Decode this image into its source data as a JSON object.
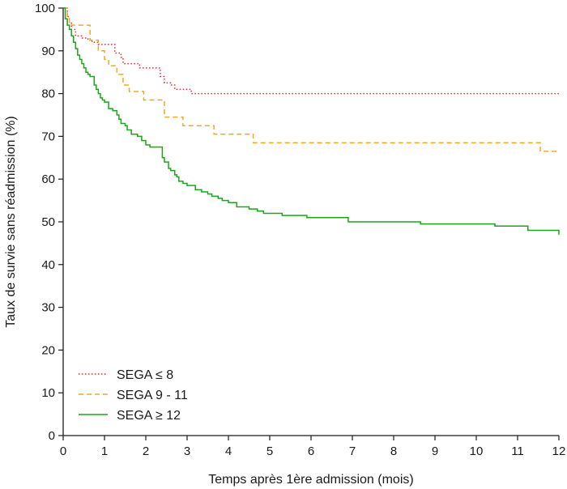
{
  "chart_data": {
    "type": "line",
    "title": "",
    "xlabel": "Temps après 1ère admission (mois)",
    "ylabel": "Taux de survie sans réadmission (%)",
    "xlim": [
      0,
      12
    ],
    "ylim": [
      0,
      100
    ],
    "xticks": [
      "0",
      "1",
      "2",
      "3",
      "4",
      "5",
      "6",
      "7",
      "8",
      "9",
      "10",
      "11",
      "12"
    ],
    "yticks": [
      "0",
      "10",
      "20",
      "30",
      "40",
      "50",
      "60",
      "70",
      "80",
      "90",
      "100"
    ],
    "grid": false,
    "legend_position": "bottom-left",
    "step": true,
    "series": [
      {
        "name": "SEGA ≤ 8",
        "color": "#e8262a",
        "dash": "dotted",
        "x": [
          0,
          0.1,
          0.15,
          0.2,
          0.3,
          0.45,
          0.6,
          0.7,
          0.85,
          1.1,
          1.25,
          1.4,
          1.45,
          1.85,
          2.35,
          2.45,
          2.6,
          2.7,
          3.1,
          12
        ],
        "y": [
          100,
          98,
          96.5,
          95,
          93.5,
          93,
          92.5,
          92,
          91.5,
          91.5,
          89.5,
          88.5,
          87,
          86,
          84,
          82.5,
          82,
          81,
          80,
          80
        ]
      },
      {
        "name": "SEGA 9 - 11",
        "color": "#f5a623",
        "dash": "dashed",
        "x": [
          0,
          0.1,
          0.15,
          0.2,
          0.35,
          0.65,
          0.85,
          1.0,
          1.1,
          1.3,
          1.45,
          1.6,
          1.95,
          2.45,
          2.9,
          3.65,
          4.6,
          11.55,
          12
        ],
        "y": [
          100,
          98,
          96.5,
          96,
          96,
          92.5,
          90,
          88,
          86.5,
          84.5,
          82,
          80.5,
          78.5,
          74.5,
          72.5,
          70.5,
          68.5,
          66.5,
          66.5
        ]
      },
      {
        "name": "SEGA ≥ 12",
        "color": "#1aa51a",
        "dash": "solid",
        "x": [
          0,
          0.05,
          0.1,
          0.15,
          0.2,
          0.25,
          0.3,
          0.35,
          0.4,
          0.45,
          0.5,
          0.55,
          0.6,
          0.65,
          0.75,
          0.8,
          0.85,
          0.9,
          0.95,
          1.0,
          1.1,
          1.2,
          1.3,
          1.35,
          1.4,
          1.5,
          1.55,
          1.65,
          1.8,
          1.9,
          2.0,
          2.1,
          2.4,
          2.45,
          2.55,
          2.6,
          2.7,
          2.75,
          2.8,
          2.9,
          3.0,
          3.2,
          3.35,
          3.5,
          3.6,
          3.75,
          3.85,
          4.0,
          4.2,
          4.5,
          4.7,
          4.85,
          5.3,
          5.9,
          6.9,
          8.65,
          10.45,
          11.25,
          12
        ],
        "y": [
          100,
          97.5,
          96,
          95,
          93.5,
          92,
          90.5,
          89,
          88,
          87,
          86,
          85,
          84.5,
          84,
          82,
          81,
          80,
          79,
          78.5,
          78,
          76.5,
          76,
          75,
          74,
          73,
          72.5,
          71.5,
          70.5,
          70,
          69,
          68,
          67.5,
          65,
          64,
          62.5,
          62,
          61,
          60.5,
          59.5,
          59,
          58.5,
          57.5,
          57,
          56.5,
          56,
          55.5,
          55,
          54.5,
          53.5,
          53,
          52.5,
          52,
          51.5,
          51,
          50,
          49.5,
          49,
          48,
          47
        ]
      }
    ]
  }
}
